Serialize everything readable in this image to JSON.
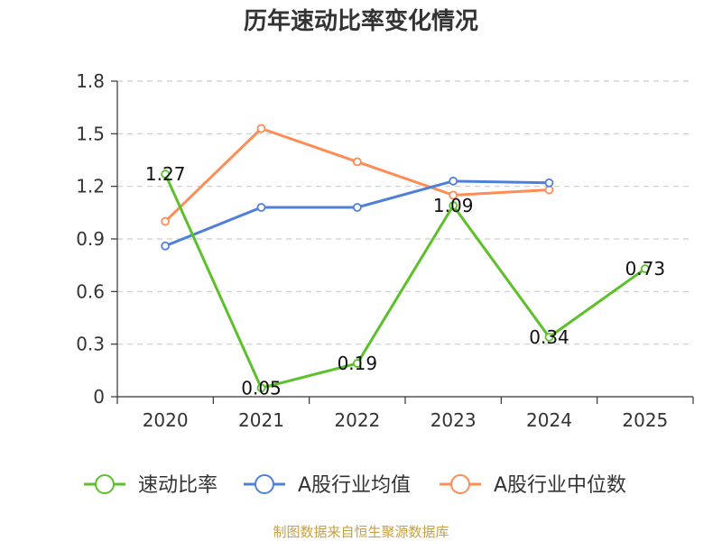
{
  "chart_data": {
    "type": "line",
    "title": "历年速动比率变化情况",
    "categories": [
      "2020",
      "2021",
      "2022",
      "2023",
      "2024",
      "2025"
    ],
    "ylim": [
      0,
      1.8
    ],
    "yticks": [
      "0",
      "0.3",
      "0.6",
      "0.9",
      "1.2",
      "1.5",
      "1.8"
    ],
    "grid": true,
    "legend_position": "bottom",
    "series": [
      {
        "name": "速动比率",
        "color": "#5bc02a",
        "values": [
          1.27,
          0.05,
          0.19,
          1.09,
          0.34,
          0.73
        ],
        "labels": [
          "1.27",
          "0.05",
          "0.19",
          "1.09",
          "0.34",
          "0.73"
        ]
      },
      {
        "name": "A股行业均值",
        "color": "#4f80d9",
        "values": [
          0.86,
          1.08,
          1.08,
          1.23,
          1.22,
          null
        ]
      },
      {
        "name": "A股行业中位数",
        "color": "#ff8c55",
        "values": [
          1.0,
          1.53,
          1.34,
          1.15,
          1.18,
          null
        ]
      }
    ],
    "source": "制图数据来自恒生聚源数据库"
  }
}
